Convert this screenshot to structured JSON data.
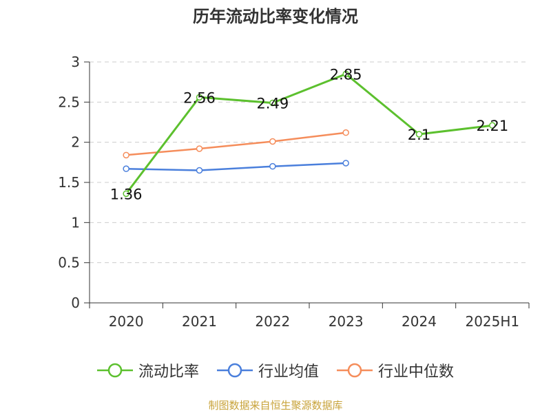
{
  "chart_data": {
    "type": "line",
    "title": "历年流动比率变化情况",
    "categories": [
      "2020",
      "2021",
      "2022",
      "2023",
      "2024",
      "2025H1"
    ],
    "ylim": [
      0,
      3
    ],
    "yticks": [
      "0",
      "0.5",
      "1",
      "1.5",
      "2",
      "2.5",
      "3"
    ],
    "grid": true,
    "legend_position": "bottom",
    "series": [
      {
        "name": "流动比率",
        "color": "#5cc02e",
        "values": [
          1.36,
          2.56,
          2.49,
          2.85,
          2.1,
          2.21
        ],
        "labels": [
          "1.36",
          "2.56",
          "2.49",
          "2.85",
          "2.1",
          "2.21"
        ]
      },
      {
        "name": "行业均值",
        "color": "#4a7fdc",
        "values": [
          1.67,
          1.65,
          1.7,
          1.74,
          null,
          null
        ]
      },
      {
        "name": "行业中位数",
        "color": "#f58d5b",
        "values": [
          1.84,
          1.92,
          2.01,
          2.12,
          null,
          null
        ]
      }
    ]
  },
  "footer": {
    "source": "制图数据来自恒生聚源数据库"
  }
}
